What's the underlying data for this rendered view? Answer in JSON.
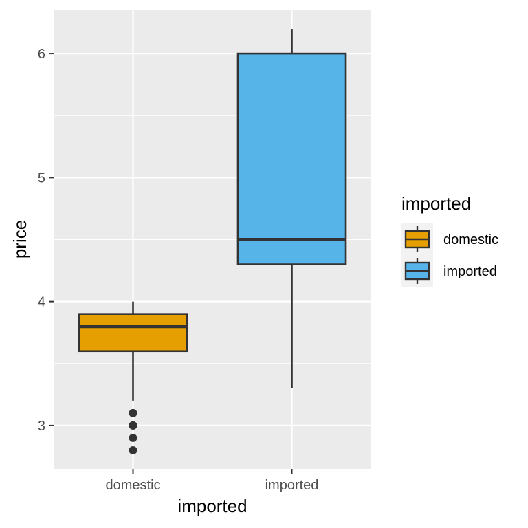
{
  "chart_data": {
    "type": "boxplot",
    "xlabel": "imported",
    "ylabel": "price",
    "categories": [
      "domestic",
      "imported"
    ],
    "ylim": [
      2.65,
      6.35
    ],
    "y_ticks": [
      3,
      4,
      5,
      6
    ],
    "y_tick_labels": [
      "3",
      "4",
      "5",
      "6"
    ],
    "grid": true,
    "legend": {
      "title": "imported",
      "placement": "right",
      "entries": [
        "domestic",
        "imported"
      ]
    },
    "series": [
      {
        "category": "domestic",
        "whisker_low": 3.2,
        "q1": 3.6,
        "median": 3.8,
        "q3": 3.9,
        "whisker_high": 4.0,
        "outliers": [
          3.1,
          3.0,
          3.0,
          2.9,
          2.8
        ],
        "color": "#E69F00"
      },
      {
        "category": "imported",
        "whisker_low": 3.3,
        "q1": 4.3,
        "median": 4.5,
        "q3": 6.0,
        "whisker_high": 6.2,
        "outliers": [],
        "color": "#56B4E9"
      }
    ]
  },
  "colors": {
    "panel_background": "#EBEBEB",
    "grid_major": "#FFFFFF",
    "box_outline": "#333333",
    "outlier": "#333333"
  }
}
